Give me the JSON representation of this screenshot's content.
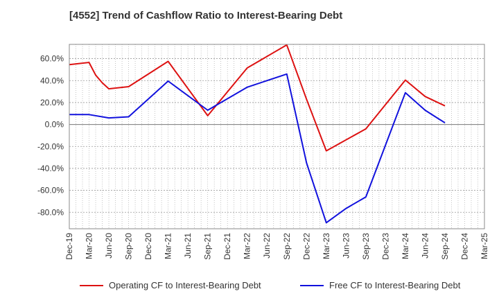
{
  "chart_data": {
    "type": "line",
    "title": "[4552]  Trend of Cashflow Ratio to Interest-Bearing Debt",
    "xlabel": "",
    "ylabel": "",
    "x_ticks": [
      "Dec-19",
      "Mar-20",
      "Jun-20",
      "Sep-20",
      "Dec-20",
      "Mar-21",
      "Jun-21",
      "Sep-21",
      "Dec-21",
      "Mar-22",
      "Jun-22",
      "Sep-22",
      "Dec-22",
      "Mar-23",
      "Jun-23",
      "Sep-23",
      "Dec-23",
      "Mar-24",
      "Jun-24",
      "Sep-24",
      "Dec-24",
      "Mar-25"
    ],
    "y_ticks": [
      "60.0%",
      "40.0%",
      "20.0%",
      "0.0%",
      "-20.0%",
      "-40.0%",
      "-60.0%",
      "-80.0%"
    ],
    "y_tick_values": [
      60,
      40,
      20,
      0,
      -20,
      -40,
      -60,
      -80
    ],
    "ylim": [
      -95,
      73
    ],
    "grid": true,
    "legend_position": "bottom",
    "series": [
      {
        "name": "Operating CF to Interest-Bearing Debt",
        "color": "#dd1111",
        "points": [
          [
            "Dec-19",
            54.5
          ],
          [
            "Mar-20",
            56.5
          ],
          [
            "Apr-20",
            45
          ],
          [
            "May-20",
            38
          ],
          [
            "Jun-20",
            32.5
          ],
          [
            "Sep-20",
            34.5
          ],
          [
            "Mar-21",
            57.5
          ],
          [
            "Sep-21",
            8
          ],
          [
            "Mar-22",
            51.5
          ],
          [
            "Sep-22",
            72.5
          ],
          [
            "Dec-22",
            23
          ],
          [
            "Mar-23",
            -24
          ],
          [
            "Sep-23",
            -4
          ],
          [
            "Mar-24",
            40.5
          ],
          [
            "Jun-24",
            25.5
          ],
          [
            "Sep-24",
            17
          ]
        ]
      },
      {
        "name": "Free CF to Interest-Bearing Debt",
        "color": "#1111dd",
        "points": [
          [
            "Dec-19",
            9
          ],
          [
            "Mar-20",
            9
          ],
          [
            "Jun-20",
            6
          ],
          [
            "Sep-20",
            7
          ],
          [
            "Mar-21",
            39.5
          ],
          [
            "Sep-21",
            13
          ],
          [
            "Mar-22",
            34
          ],
          [
            "Sep-22",
            46
          ],
          [
            "Dec-22",
            -35
          ],
          [
            "Mar-23",
            -89.5
          ],
          [
            "Jun-23",
            -76.5
          ],
          [
            "Sep-23",
            -66
          ],
          [
            "Mar-24",
            29
          ],
          [
            "Jun-24",
            13
          ],
          [
            "Sep-24",
            1.5
          ]
        ]
      }
    ]
  }
}
